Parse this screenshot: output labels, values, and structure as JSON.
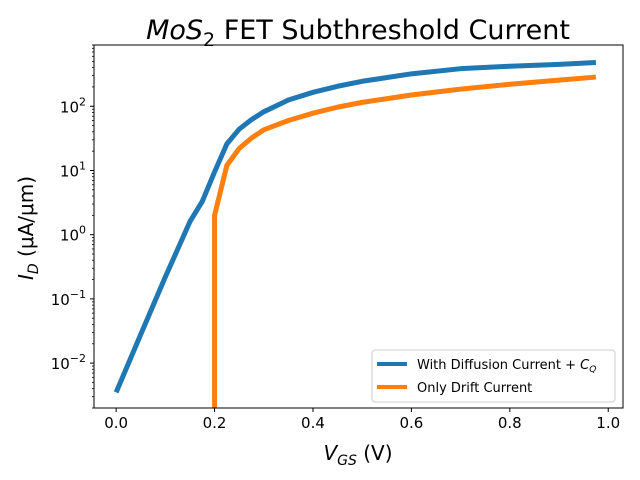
{
  "chart_data": {
    "type": "line",
    "title": {
      "main": "MoS",
      "sub": "2",
      "rest": " FET Subthreshold Current"
    },
    "xlabel": {
      "var": "V",
      "sub": "GS",
      "rest": " (V)"
    },
    "ylabel": {
      "var": "I",
      "sub": "D",
      "rest": " (μA/μm)"
    },
    "xlim": [
      -0.045,
      1.03
    ],
    "ylim": [
      0.002,
      900
    ],
    "yscale": "log",
    "grid": false,
    "legend_position": "lower-right",
    "xticks": [
      {
        "value": 0.0,
        "label": "0.0"
      },
      {
        "value": 0.2,
        "label": "0.2"
      },
      {
        "value": 0.4,
        "label": "0.4"
      },
      {
        "value": 0.6,
        "label": "0.6"
      },
      {
        "value": 0.8,
        "label": "0.8"
      },
      {
        "value": 1.0,
        "label": "1.0"
      }
    ],
    "yticks": [
      {
        "value": 0.01,
        "base": "10",
        "exp": "−2"
      },
      {
        "value": 0.1,
        "base": "10",
        "exp": "−1"
      },
      {
        "value": 1,
        "base": "10",
        "exp": "0"
      },
      {
        "value": 10,
        "base": "10",
        "exp": "1"
      },
      {
        "value": 100,
        "base": "10",
        "exp": "2"
      }
    ],
    "series": [
      {
        "name": "With Diffusion Current + ",
        "name_var": "C",
        "name_sub": "Q",
        "color": "#1f77b4",
        "x": [
          0.0,
          0.05,
          0.1,
          0.15,
          0.175,
          0.2,
          0.225,
          0.25,
          0.275,
          0.3,
          0.35,
          0.4,
          0.45,
          0.5,
          0.6,
          0.7,
          0.8,
          0.9,
          0.975
        ],
        "y": [
          0.0035,
          0.028,
          0.22,
          1.6,
          3.3,
          9.5,
          26,
          44,
          62,
          82,
          125,
          165,
          205,
          245,
          320,
          385,
          420,
          450,
          480
        ]
      },
      {
        "name": "Only Drift Current",
        "color": "#ff7f0e",
        "x": [
          0.2,
          0.2,
          0.225,
          0.25,
          0.275,
          0.3,
          0.35,
          0.4,
          0.45,
          0.5,
          0.6,
          0.7,
          0.8,
          0.9,
          0.975
        ],
        "y": [
          0.002,
          2,
          12,
          22,
          32,
          43,
          60,
          78,
          97,
          115,
          150,
          185,
          220,
          255,
          285
        ]
      }
    ]
  }
}
